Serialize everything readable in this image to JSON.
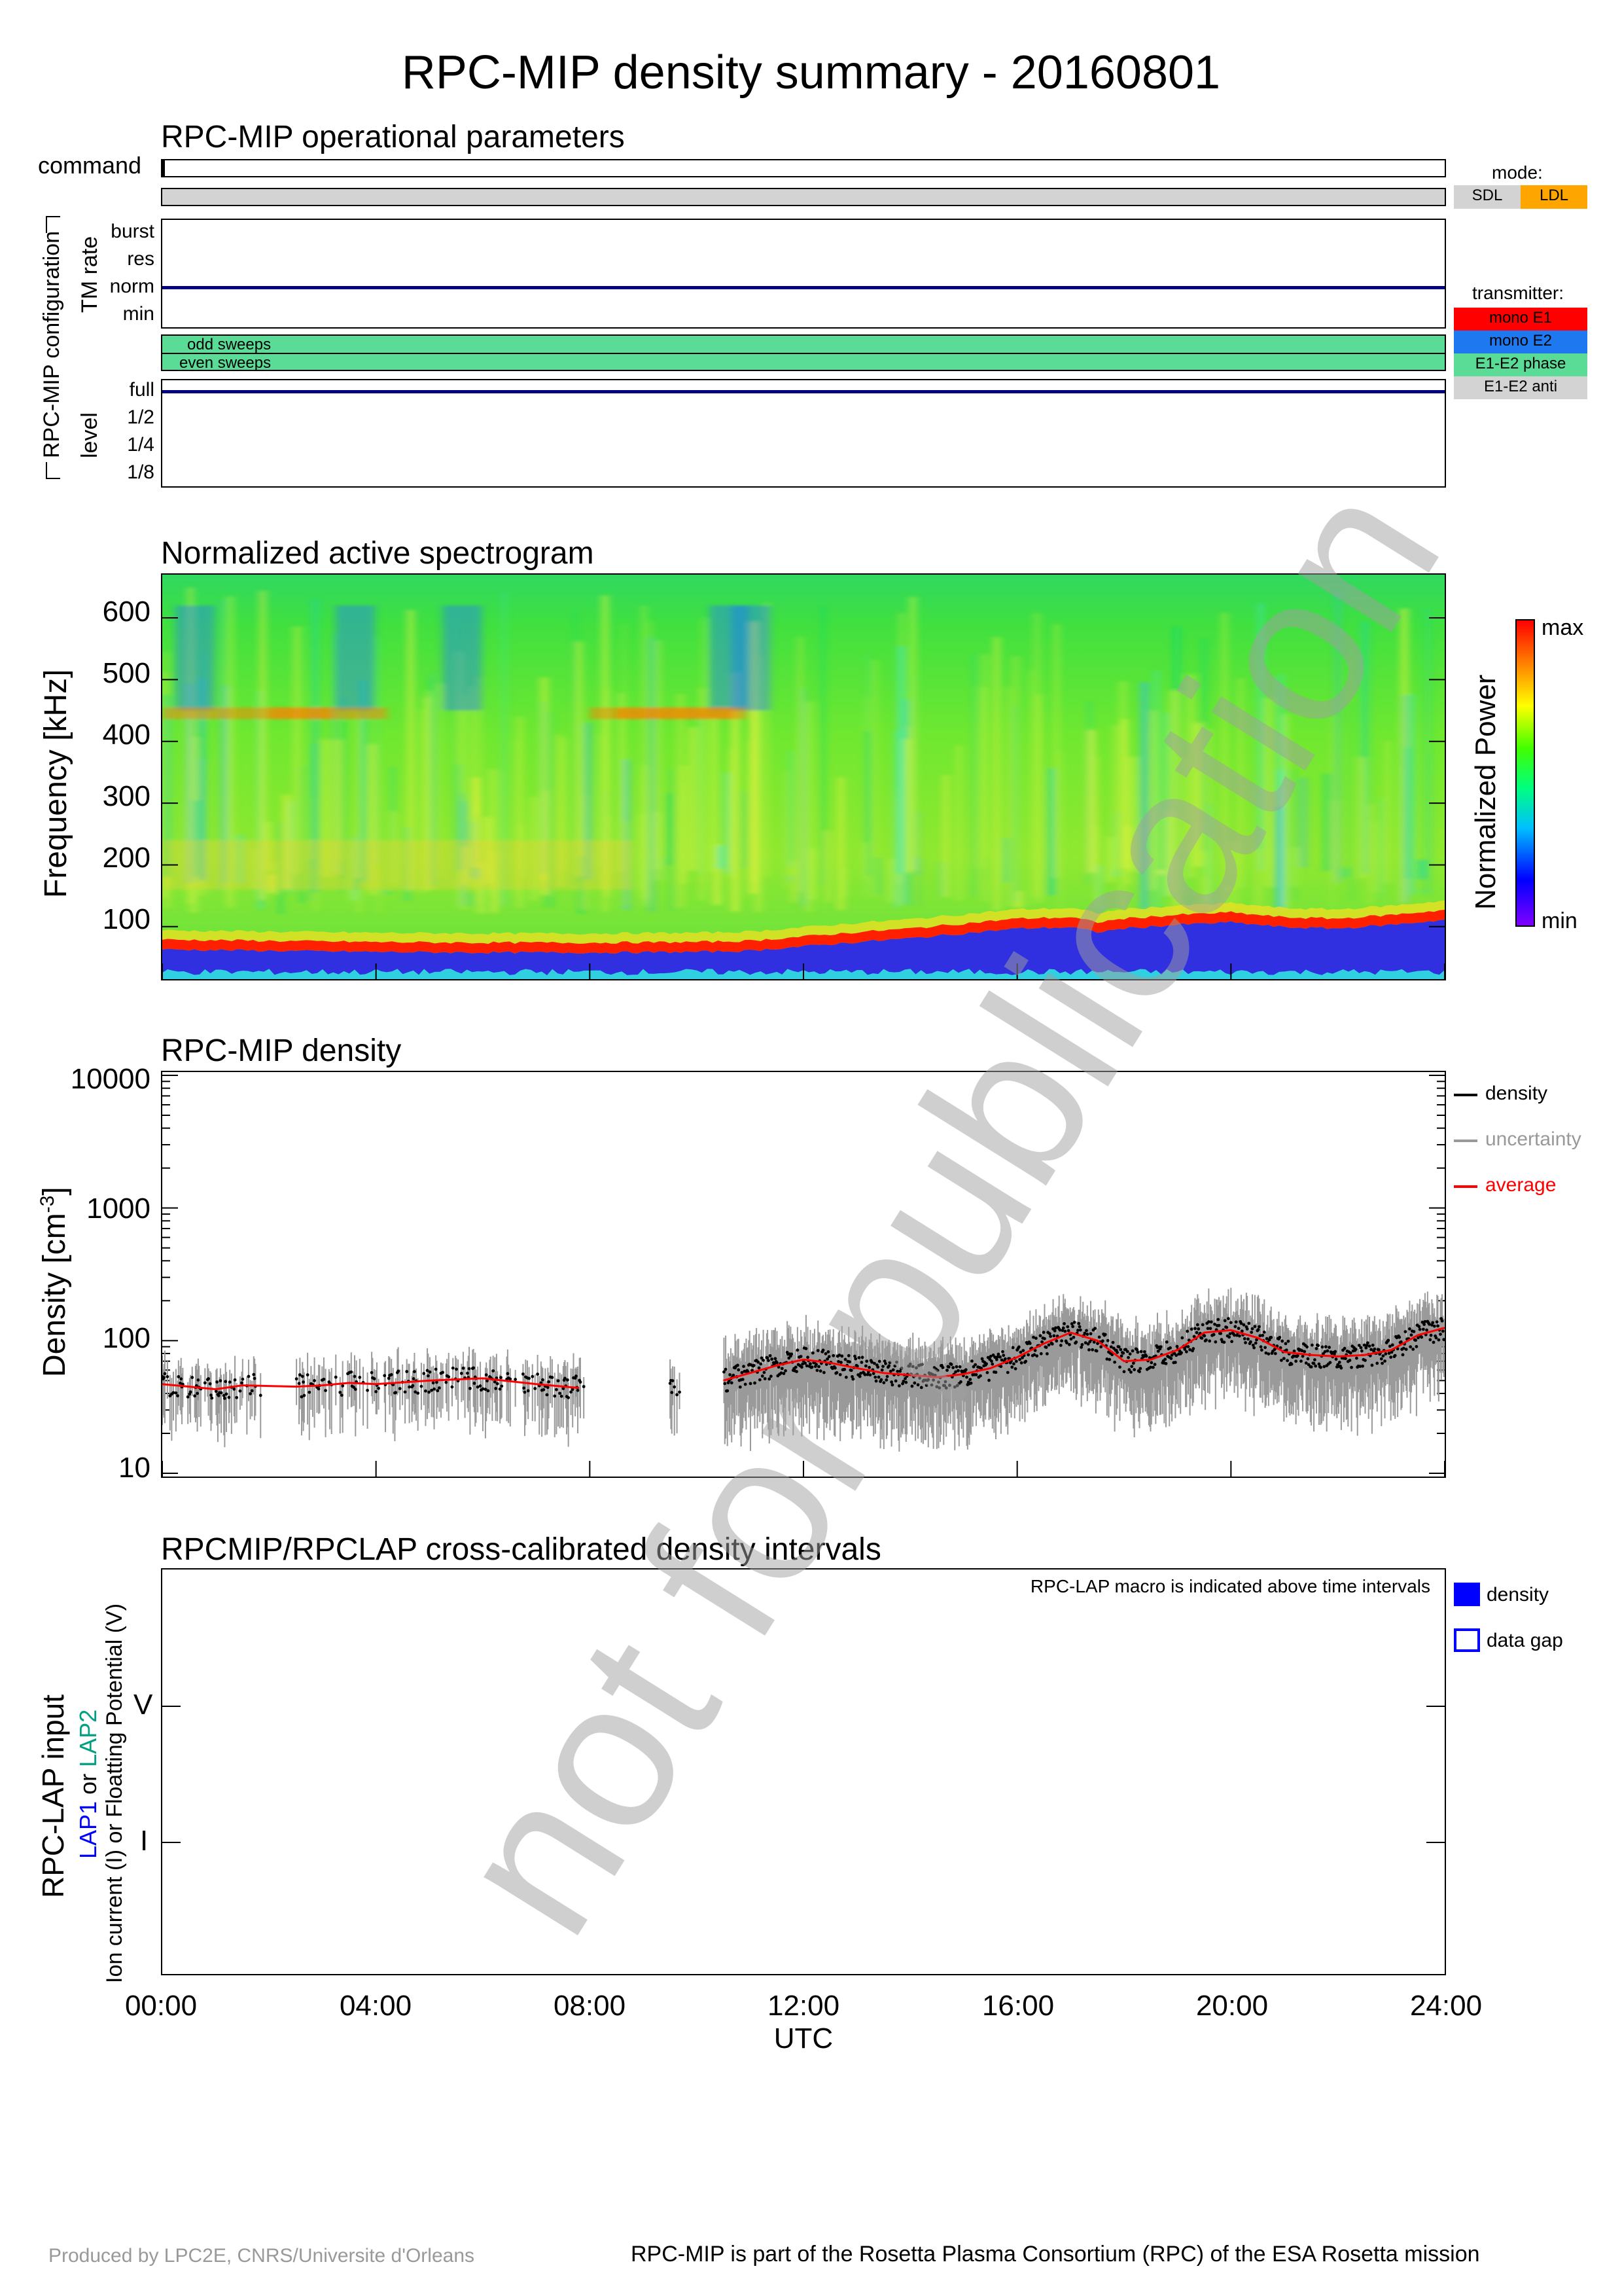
{
  "title": "RPC-MIP density summary - 20160801",
  "watermark": "not for publication",
  "ops_panel": {
    "title": "RPC-MIP operational parameters",
    "command_label": "command",
    "config_label": "RPC-MIP configuration",
    "tm_rate_label": "TM rate",
    "tm_rate_levels": [
      "burst",
      "res",
      "norm",
      "min"
    ],
    "tm_rate_value": "norm",
    "sweeps": [
      "odd sweeps",
      "even sweeps"
    ],
    "level_label": "level",
    "level_levels": [
      "full",
      "1/2",
      "1/4",
      "1/8"
    ],
    "level_value": "full",
    "mode_title": "mode:",
    "modes": [
      {
        "label": "SDL",
        "color": "#d3d3d3"
      },
      {
        "label": "LDL",
        "color": "#ffa500"
      }
    ],
    "transmitter_title": "transmitter:",
    "transmitters": [
      {
        "label": "mono E1",
        "color": "#ff0000"
      },
      {
        "label": "mono E2",
        "color": "#1e78f0"
      },
      {
        "label": "E1-E2 phase",
        "color": "#5adc96"
      },
      {
        "label": "E1-E2 anti",
        "color": "#d3d3d3"
      }
    ],
    "sweep_color": "#5adc96",
    "mode_bar_color": "#d3d3d3"
  },
  "spectro_panel": {
    "title": "Normalized active spectrogram",
    "ylabel": "Frequency [kHz]",
    "yticks": [
      "100",
      "200",
      "300",
      "400",
      "500",
      "600"
    ],
    "colorbar_label": "Normalized Power",
    "colorbar_max": "max",
    "colorbar_min": "min"
  },
  "density_panel": {
    "title": "RPC-MIP density",
    "ylabel": "Density [cm",
    "ylabel_exp": "-3",
    "ylabel_end": "]",
    "yticks": [
      "10000",
      "1000",
      "100",
      "10"
    ],
    "legend": [
      {
        "label": "density",
        "color": "#000000"
      },
      {
        "label": "uncertainty",
        "color": "#999999"
      },
      {
        "label": "average",
        "color": "#ff0000"
      }
    ]
  },
  "lap_panel": {
    "title": "RPCMIP/RPCLAP cross-calibrated density intervals",
    "note": "RPC-LAP macro is indicated above time intervals",
    "ylabel_main": "RPC-LAP input",
    "ylabel_lap1": "LAP1",
    "ylabel_or": " or ",
    "ylabel_lap2": "LAP2",
    "ylabel_sub": "Ion current (I) or Floatting Potential (V)",
    "ylevels": [
      "V",
      "I"
    ],
    "legend": [
      {
        "label": "density",
        "color": "#0000ff",
        "filled": true
      },
      {
        "label": "data gap",
        "color": "#0000ff",
        "filled": false
      }
    ]
  },
  "xaxis": {
    "ticks": [
      "00:00",
      "04:00",
      "08:00",
      "12:00",
      "16:00",
      "20:00",
      "24:00"
    ],
    "label": "UTC"
  },
  "footer": {
    "left": "Produced by LPC2E, CNRS/Universite d'Orleans",
    "right": "RPC-MIP is part of the Rosetta Plasma Consortium (RPC) of the ESA Rosetta mission"
  },
  "chart_data": [
    {
      "type": "heatmap",
      "title": "Normalized active spectrogram",
      "xlabel": "UTC",
      "ylabel": "Frequency [kHz]",
      "xlim": [
        0,
        24
      ],
      "ylim": [
        15,
        670
      ],
      "colorbar": {
        "label": "Normalized Power",
        "min": "min",
        "max": "max"
      },
      "plasma_line_kHz": {
        "hours": [
          0,
          2,
          4,
          6,
          8,
          10,
          11,
          12,
          13,
          14,
          15,
          16,
          17,
          17.5,
          18,
          19,
          20,
          21,
          22,
          23,
          24
        ],
        "values": [
          70,
          68,
          66,
          65,
          65,
          66,
          68,
          75,
          82,
          88,
          96,
          104,
          106,
          98,
          104,
          110,
          114,
          106,
          104,
          110,
          118
        ]
      }
    },
    {
      "type": "scatter",
      "title": "RPC-MIP density",
      "xlabel": "UTC",
      "ylabel": "Density [cm-3]",
      "xlim": [
        0,
        24
      ],
      "ylim": [
        10,
        10000
      ],
      "yscale": "log",
      "series": [
        {
          "name": "average",
          "hours": [
            0,
            0.5,
            1,
            1.5,
            2.5,
            3,
            3.5,
            4,
            5,
            6,
            7,
            7.8,
            10.5,
            11,
            11.5,
            12,
            12.5,
            13,
            13.5,
            14,
            14.5,
            15,
            15.5,
            16,
            16.5,
            17,
            17.5,
            18,
            18.5,
            19,
            19.5,
            20,
            20.5,
            21,
            21.5,
            22,
            22.5,
            23,
            23.5,
            24
          ],
          "values": [
            47,
            45,
            43,
            46,
            45,
            46,
            48,
            47,
            50,
            52,
            47,
            44,
            50,
            57,
            65,
            72,
            68,
            62,
            57,
            55,
            53,
            56,
            62,
            75,
            95,
            115,
            100,
            70,
            72,
            85,
            115,
            120,
            105,
            82,
            78,
            76,
            78,
            85,
            110,
            125
          ]
        }
      ],
      "gaps_hours": [
        [
          1.9,
          2.5
        ],
        [
          7.9,
          9.5
        ],
        [
          9.7,
          10.5
        ]
      ]
    }
  ]
}
